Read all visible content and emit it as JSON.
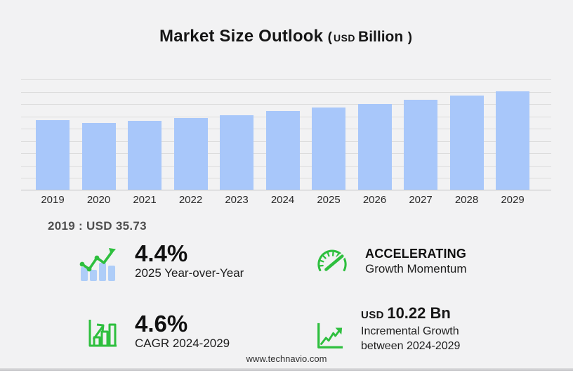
{
  "header": {
    "title": "Market Size Outlook",
    "paren_open": "(",
    "currency": "USD",
    "unit": "Billion",
    "paren_close": ")"
  },
  "chart_data": {
    "type": "bar",
    "title": "Market Size Outlook (USD Billion)",
    "categories": [
      "2019",
      "2020",
      "2021",
      "2022",
      "2023",
      "2024",
      "2025",
      "2026",
      "2027",
      "2028",
      "2029"
    ],
    "values": [
      35.73,
      34.2,
      35.5,
      36.9,
      38.3,
      40.5,
      42.3,
      44.2,
      46.2,
      48.4,
      50.7
    ],
    "xlabel": "",
    "ylabel": "",
    "ylim": [
      0,
      56.7
    ],
    "grid": true,
    "legend": "none",
    "annotation": "2019 : USD  35.73"
  },
  "base_year_note": "2019 : USD  35.73",
  "stats": {
    "yoy": {
      "icon": "bar-chart-trend-icon",
      "value": "4.4%",
      "label": "2025 Year-over-Year"
    },
    "momentum": {
      "icon": "speedometer-icon",
      "value": "ACCELERATING",
      "label": "Growth Momentum"
    },
    "cagr": {
      "icon": "growth-bars-icon",
      "value": "4.6%",
      "label": "CAGR 2024-2029"
    },
    "incremental": {
      "icon": "line-growth-icon",
      "currency": "USD",
      "value": "10.22 Bn",
      "label_line1": "Incremental Growth",
      "label_line2": "between 2024-2029"
    }
  },
  "footer": {
    "website": "www.technavio.com"
  },
  "colors": {
    "background": "#f2f2f3",
    "bar": "#a8c7fa",
    "icon_bar_blue": "#aecdf8",
    "accent_green": "#2ebf3e",
    "gridline": "#dcdcdc",
    "baseline": "#c2c2c4",
    "text_dark": "#161616",
    "note_gray": "#4f4f4f"
  }
}
